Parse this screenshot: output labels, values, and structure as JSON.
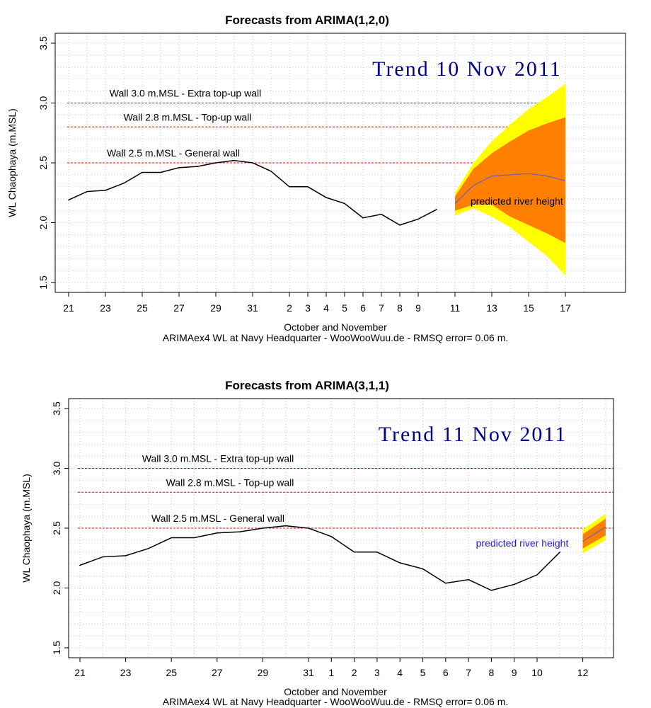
{
  "chart_data": [
    {
      "type": "line",
      "title": "Forecasts from ARIMA(1,2,0)",
      "ylabel": "WL Chaophaya (m.MSL)",
      "xlabel": "October and November",
      "caption": "ARIMAex4 WL at Navy Headquarter - WooWooWuu.de - RMSQ error= 0.06  m.",
      "trend_label": "Trend 10 Nov 2011",
      "ylim": [
        1.5,
        3.5
      ],
      "y_ticks": [
        "1.5",
        "2.0",
        "2.5",
        "3.0",
        "3.5"
      ],
      "x_index_range": [
        0,
        28
      ],
      "x_ticks": [
        {
          "i": 0,
          "label": "21"
        },
        {
          "i": 2,
          "label": "23"
        },
        {
          "i": 4,
          "label": "25"
        },
        {
          "i": 6,
          "label": "27"
        },
        {
          "i": 8,
          "label": "29"
        },
        {
          "i": 10,
          "label": "31"
        },
        {
          "i": 12,
          "label": "2"
        },
        {
          "i": 13,
          "label": "3"
        },
        {
          "i": 14,
          "label": "4"
        },
        {
          "i": 15,
          "label": "5"
        },
        {
          "i": 16,
          "label": "6"
        },
        {
          "i": 17,
          "label": "7"
        },
        {
          "i": 18,
          "label": "8"
        },
        {
          "i": 19,
          "label": "9"
        },
        {
          "i": 21,
          "label": "11"
        },
        {
          "i": 23,
          "label": "13"
        },
        {
          "i": 25,
          "label": "15"
        },
        {
          "i": 27,
          "label": "17"
        }
      ],
      "walls": [
        {
          "value": 3.0,
          "label": "Wall 3.0 m.MSL - Extra top-up wall"
        },
        {
          "value": 2.8,
          "label": "Wall 2.8 m.MSL - Top-up wall"
        },
        {
          "value": 2.5,
          "label": "Wall 2.5 m.MSL - General wall"
        }
      ],
      "observed": {
        "x": [
          0,
          1,
          2,
          3,
          4,
          5,
          6,
          7,
          8,
          9,
          10,
          11,
          12,
          13,
          14,
          15,
          16,
          17,
          18,
          19,
          20
        ],
        "y": [
          2.19,
          2.26,
          2.27,
          2.33,
          2.42,
          2.42,
          2.46,
          2.47,
          2.5,
          2.52,
          2.5,
          2.43,
          2.3,
          2.3,
          2.21,
          2.16,
          2.04,
          2.07,
          1.98,
          2.03,
          2.11
        ]
      },
      "forecast": {
        "label": "predicted river height",
        "label_color": "#000000",
        "x": [
          21,
          22,
          23,
          24,
          25,
          26,
          27
        ],
        "mean": [
          2.16,
          2.31,
          2.39,
          2.4,
          2.41,
          2.39,
          2.35
        ],
        "lo80": [
          2.1,
          2.15,
          2.15,
          2.05,
          1.98,
          1.91,
          1.83
        ],
        "hi80": [
          2.22,
          2.45,
          2.58,
          2.68,
          2.77,
          2.83,
          2.88
        ],
        "lo95": [
          2.06,
          2.12,
          2.05,
          1.96,
          1.84,
          1.72,
          1.56
        ],
        "hi95": [
          2.25,
          2.5,
          2.68,
          2.82,
          2.95,
          3.05,
          3.16
        ]
      },
      "colors": {
        "observed": "#000000",
        "forecast_mean": "#6b5fb5",
        "band80": "#ff8000",
        "band95": "#ffff00",
        "wall": "#ff0000"
      }
    },
    {
      "type": "line",
      "title": "Forecasts from ARIMA(3,1,1)",
      "ylabel": "WL Chaophaya (m.MSL)",
      "xlabel": "October and November",
      "caption": "ARIMAex4 WL at Navy Headquarter - WooWooWuu.de - RMSQ error= 0.06  m.",
      "trend_label": "Trend 11 Nov 2011",
      "ylim": [
        1.5,
        3.5
      ],
      "y_ticks": [
        "1.5",
        "2.0",
        "2.5",
        "3.0",
        "3.5"
      ],
      "x_index_range": [
        0,
        23
      ],
      "x_ticks": [
        {
          "i": 0,
          "label": "21"
        },
        {
          "i": 2,
          "label": "23"
        },
        {
          "i": 4,
          "label": "25"
        },
        {
          "i": 6,
          "label": "27"
        },
        {
          "i": 8,
          "label": "29"
        },
        {
          "i": 10,
          "label": "31"
        },
        {
          "i": 11,
          "label": "1"
        },
        {
          "i": 12,
          "label": "2"
        },
        {
          "i": 13,
          "label": "3"
        },
        {
          "i": 14,
          "label": "4"
        },
        {
          "i": 15,
          "label": "5"
        },
        {
          "i": 16,
          "label": "6"
        },
        {
          "i": 17,
          "label": "7"
        },
        {
          "i": 18,
          "label": "8"
        },
        {
          "i": 19,
          "label": "9"
        },
        {
          "i": 20,
          "label": "10"
        },
        {
          "i": 22,
          "label": "12"
        }
      ],
      "walls": [
        {
          "value": 3.0,
          "label": "Wall 3.0 m.MSL - Extra top-up wall"
        },
        {
          "value": 2.8,
          "label": "Wall 2.8 m.MSL - Top-up wall"
        },
        {
          "value": 2.5,
          "label": "Wall 2.5 m.MSL - General wall"
        }
      ],
      "observed": {
        "x": [
          0,
          1,
          2,
          3,
          4,
          5,
          6,
          7,
          8,
          9,
          10,
          11,
          12,
          13,
          14,
          15,
          16,
          17,
          18,
          19,
          20,
          21
        ],
        "y": [
          2.19,
          2.26,
          2.27,
          2.33,
          2.42,
          2.42,
          2.46,
          2.47,
          2.5,
          2.52,
          2.5,
          2.43,
          2.3,
          2.3,
          2.21,
          2.16,
          2.04,
          2.07,
          1.98,
          2.03,
          2.11,
          2.3
        ]
      },
      "forecast": {
        "label": "predicted river height",
        "label_color": "#1a1ae6",
        "x": [
          22,
          23
        ],
        "mean": [
          2.39,
          2.51
        ],
        "lo80": [
          2.33,
          2.44
        ],
        "hi80": [
          2.45,
          2.58
        ],
        "lo95": [
          2.29,
          2.4
        ],
        "hi95": [
          2.49,
          2.62
        ]
      },
      "colors": {
        "observed": "#000000",
        "forecast_mean": "#6b5fb5",
        "band80": "#ff8000",
        "band95": "#ffff00",
        "wall": "#ff0000"
      }
    }
  ]
}
